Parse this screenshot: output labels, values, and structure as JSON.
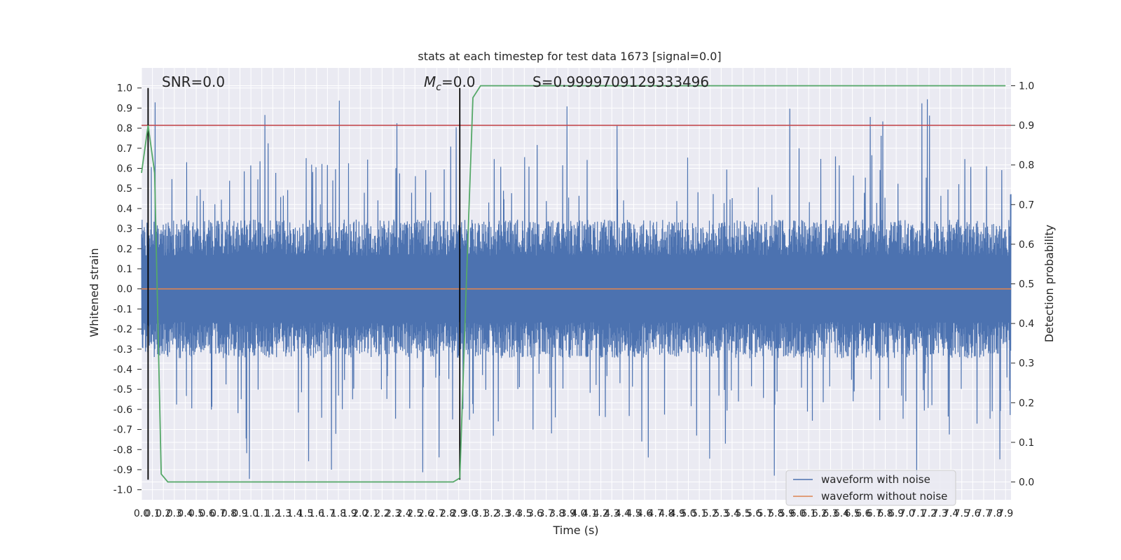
{
  "chart_data": {
    "type": "line",
    "title": "stats at each timestep for test data 1673 [signal=0.0]",
    "xlabel": "Time (s)",
    "ylabel": "Whitened strain",
    "y2label": "Detection probability",
    "xlim": [
      0.0,
      7.95
    ],
    "ylim": [
      -1.05,
      1.1
    ],
    "y2lim": [
      -0.045,
      1.045
    ],
    "x_ticks": [
      "0.0",
      "0.1",
      "0.2",
      "0.3",
      "0.4",
      "0.5",
      "0.6",
      "0.7",
      "0.8",
      "0.9",
      "1.0",
      "1.1",
      "1.2",
      "1.3",
      "1.4",
      "1.5",
      "1.6",
      "1.7",
      "1.8",
      "1.9",
      "2.0",
      "2.1",
      "2.2",
      "2.3",
      "2.4",
      "2.5",
      "2.6",
      "2.7",
      "2.8",
      "2.9",
      "3.0",
      "3.1",
      "3.2",
      "3.3",
      "3.4",
      "3.5",
      "3.6",
      "3.7",
      "3.8",
      "3.9",
      "4.0",
      "4.1",
      "4.2",
      "4.3",
      "4.4",
      "4.5",
      "4.6",
      "4.7",
      "4.8",
      "4.9",
      "5.0",
      "5.1",
      "5.2",
      "5.3",
      "5.4",
      "5.5",
      "5.6",
      "5.7",
      "5.8",
      "5.9",
      "6.0",
      "6.1",
      "6.2",
      "6.3",
      "6.4",
      "6.5",
      "6.6",
      "6.7",
      "6.8",
      "6.9",
      "7.0",
      "7.1",
      "7.2",
      "7.3",
      "7.4",
      "7.5",
      "7.6",
      "7.7",
      "7.8",
      "7.9"
    ],
    "y_ticks": [
      "-1.0",
      "-0.9",
      "-0.8",
      "-0.7",
      "-0.6",
      "-0.5",
      "-0.4",
      "-0.3",
      "-0.2",
      "-0.1",
      "0.0",
      "0.1",
      "0.2",
      "0.3",
      "0.4",
      "0.5",
      "0.6",
      "0.7",
      "0.8",
      "0.9",
      "1.0"
    ],
    "y2_ticks": [
      "0.0",
      "0.1",
      "0.2",
      "0.3",
      "0.4",
      "0.5",
      "0.6",
      "0.7",
      "0.8",
      "0.9",
      "1.0"
    ],
    "grid": true,
    "legend_position": "lower right",
    "annotations": {
      "snr": "SNR=0.0",
      "mc_symbol": "M",
      "mc_subscript": "c",
      "mc_value": "=0.0",
      "s": "S=0.9999709129333496"
    },
    "series": [
      {
        "name": "waveform with noise",
        "color": "#4c72b0",
        "axis": "left",
        "note_values": "dense noise, typical amplitude about ±0.3 with peaks near ±1.0",
        "typical_amplitude": 0.3,
        "peak_amplitude": 1.0
      },
      {
        "name": "waveform without noise",
        "color": "#dd8452",
        "axis": "left",
        "x": [
          0.0,
          7.95
        ],
        "y": [
          0.0,
          0.0
        ]
      },
      {
        "color": "#55a868",
        "axis": "right",
        "x": [
          0.0,
          0.06,
          0.12,
          0.18,
          0.24,
          2.7,
          2.85,
          2.91,
          2.97,
          3.03,
          3.1,
          7.9
        ],
        "y": [
          0.78,
          0.9,
          0.78,
          0.02,
          0.0,
          0.0,
          0.0,
          0.01,
          0.5,
          0.97,
          1.0,
          1.0
        ]
      }
    ],
    "threshold": {
      "value": 0.9,
      "axis": "right",
      "color": "#c44e52"
    },
    "vlines": [
      0.06,
      2.91
    ],
    "vline_range": [
      -0.95,
      1.0
    ]
  }
}
